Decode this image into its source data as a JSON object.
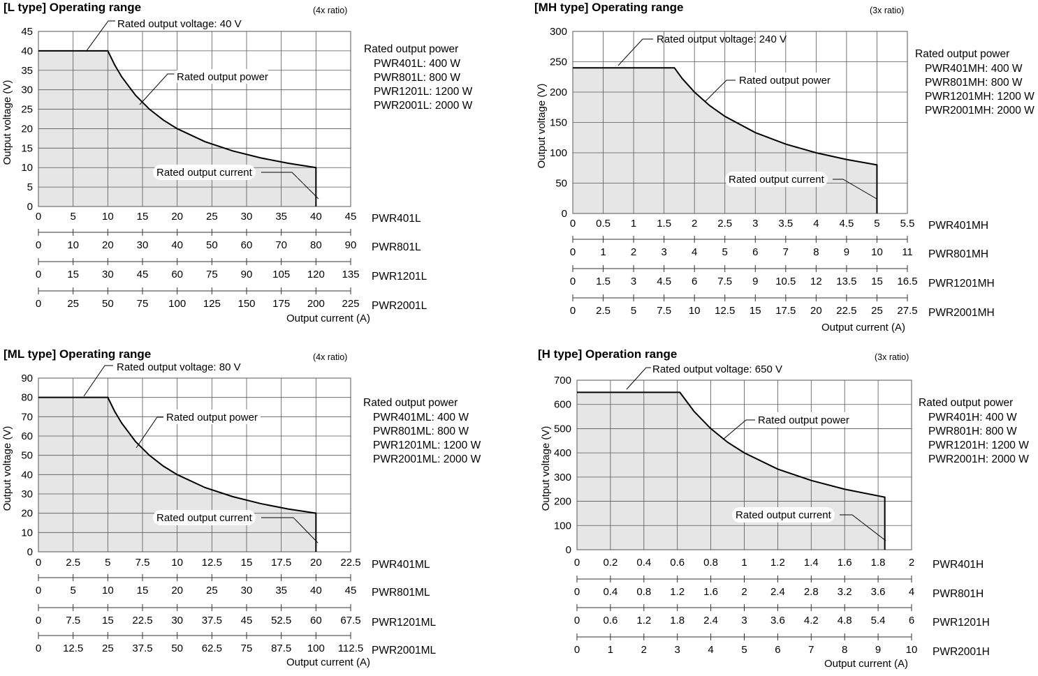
{
  "colors": {
    "fill": "#e6e6e6",
    "line": "#000000",
    "grid": "#555555",
    "tick_line": "#333333"
  },
  "chart_data": [
    {
      "type": "area",
      "title": "[L type] Operating range",
      "ratio_note": "(4x ratio)",
      "ylabel": "Output voltage (V)",
      "xlabel": "Output current (A)",
      "ylim": [
        0,
        45
      ],
      "yticks": [
        "0",
        "5",
        "10",
        "15",
        "20",
        "25",
        "30",
        "35",
        "40",
        "45"
      ],
      "grid_x_divisions": 9,
      "x_axes": [
        {
          "model": "PWR401L",
          "ticks": [
            "0",
            "5",
            "10",
            "15",
            "20",
            "25",
            "30",
            "35",
            "40",
            "45"
          ]
        },
        {
          "model": "PWR801L",
          "ticks": [
            "0",
            "10",
            "20",
            "30",
            "40",
            "50",
            "60",
            "70",
            "80",
            "90"
          ]
        },
        {
          "model": "PWR1201L",
          "ticks": [
            "0",
            "15",
            "30",
            "45",
            "60",
            "75",
            "90",
            "105",
            "120",
            "135"
          ]
        },
        {
          "model": "PWR2001L",
          "ticks": [
            "0",
            "25",
            "50",
            "75",
            "100",
            "125",
            "150",
            "175",
            "200",
            "225"
          ]
        }
      ],
      "xlim": [
        0,
        45
      ],
      "boundary": [
        [
          0,
          40
        ],
        [
          10,
          40
        ],
        [
          11,
          36.36
        ],
        [
          12,
          33.33
        ],
        [
          14,
          28.57
        ],
        [
          16,
          25
        ],
        [
          18,
          22.22
        ],
        [
          20,
          20
        ],
        [
          24,
          16.67
        ],
        [
          28,
          14.29
        ],
        [
          32,
          12.5
        ],
        [
          36,
          11.11
        ],
        [
          40,
          10
        ],
        [
          40,
          0
        ]
      ],
      "annotations": {
        "voltage": "Rated output voltage: 40 V",
        "power": "Rated output power",
        "current": "Rated output current"
      },
      "rated_power": {
        "heading": "Rated output power",
        "items": [
          "PWR401L: 400 W",
          "PWR801L: 800 W",
          "PWR1201L: 1200 W",
          "PWR2001L: 2000 W"
        ]
      }
    },
    {
      "type": "area",
      "title": "[MH type] Operating range",
      "ratio_note": "(3x ratio)",
      "ylabel": "Output voltage (V)",
      "xlabel": "Output current (A)",
      "ylim": [
        0,
        300
      ],
      "yticks": [
        "0",
        "50",
        "100",
        "150",
        "200",
        "250",
        "300"
      ],
      "grid_x_divisions": 11,
      "x_axes": [
        {
          "model": "PWR401MH",
          "ticks": [
            "0",
            "0.5",
            "1",
            "1.5",
            "2",
            "2.5",
            "3",
            "3.5",
            "4",
            "4.5",
            "5",
            "5.5"
          ]
        },
        {
          "model": "PWR801MH",
          "ticks": [
            "0",
            "1",
            "2",
            "3",
            "4",
            "5",
            "6",
            "7",
            "8",
            "9",
            "10",
            "11"
          ]
        },
        {
          "model": "PWR1201MH",
          "ticks": [
            "0",
            "1.5",
            "3",
            "4.5",
            "6",
            "7.5",
            "9",
            "10.5",
            "12",
            "13.5",
            "15",
            "16.5"
          ]
        },
        {
          "model": "PWR2001MH",
          "ticks": [
            "0",
            "2.5",
            "5",
            "7.5",
            "10",
            "12.5",
            "15",
            "17.5",
            "20",
            "22.5",
            "25",
            "27.5"
          ]
        }
      ],
      "xlim": [
        0,
        5.5
      ],
      "boundary": [
        [
          0,
          240
        ],
        [
          1.67,
          240
        ],
        [
          1.8,
          222.2
        ],
        [
          2.0,
          200
        ],
        [
          2.25,
          177.8
        ],
        [
          2.5,
          160
        ],
        [
          3.0,
          133.3
        ],
        [
          3.5,
          114.3
        ],
        [
          4.0,
          100
        ],
        [
          4.5,
          88.9
        ],
        [
          5.0,
          80
        ],
        [
          5.0,
          0
        ]
      ],
      "annotations": {
        "voltage": "Rated output voltage: 240 V",
        "power": "Rated output power",
        "current": "Rated output current"
      },
      "rated_power": {
        "heading": "Rated output power",
        "items": [
          "PWR401MH: 400 W",
          "PWR801MH: 800 W",
          "PWR1201MH: 1200 W",
          "PWR2001MH: 2000 W"
        ]
      }
    },
    {
      "type": "area",
      "title": "[ML type] Operating range",
      "ratio_note": "(4x ratio)",
      "ylabel": "Output voltage (V)",
      "xlabel": "Output current (A)",
      "ylim": [
        0,
        90
      ],
      "yticks": [
        "0",
        "10",
        "20",
        "30",
        "40",
        "50",
        "60",
        "70",
        "80",
        "90"
      ],
      "grid_x_divisions": 9,
      "x_axes": [
        {
          "model": "PWR401ML",
          "ticks": [
            "0",
            "2.5",
            "5",
            "7.5",
            "10",
            "12.5",
            "15",
            "17.5",
            "20",
            "22.5"
          ]
        },
        {
          "model": "PWR801ML",
          "ticks": [
            "0",
            "5",
            "10",
            "15",
            "20",
            "25",
            "30",
            "35",
            "40",
            "45"
          ]
        },
        {
          "model": "PWR1201ML",
          "ticks": [
            "0",
            "7.5",
            "15",
            "22.5",
            "30",
            "37.5",
            "45",
            "52.5",
            "60",
            "67.5"
          ]
        },
        {
          "model": "PWR2001ML",
          "ticks": [
            "0",
            "12.5",
            "25",
            "37.5",
            "50",
            "62.5",
            "75",
            "87.5",
            "100",
            "112.5"
          ]
        }
      ],
      "xlim": [
        0,
        22.5
      ],
      "boundary": [
        [
          0,
          80
        ],
        [
          5,
          80
        ],
        [
          5.5,
          72.7
        ],
        [
          6,
          66.7
        ],
        [
          7,
          57.1
        ],
        [
          8,
          50
        ],
        [
          9,
          44.4
        ],
        [
          10,
          40
        ],
        [
          12,
          33.3
        ],
        [
          14,
          28.6
        ],
        [
          16,
          25
        ],
        [
          18,
          22.2
        ],
        [
          20,
          20
        ],
        [
          20,
          0
        ]
      ],
      "annotations": {
        "voltage": "Rated output voltage: 80 V",
        "power": "Rated output power",
        "current": "Rated output current"
      },
      "rated_power": {
        "heading": "Rated output power",
        "items": [
          "PWR401ML: 400 W",
          "PWR801ML: 800 W",
          "PWR1201ML: 1200 W",
          "PWR2001ML: 2000 W"
        ]
      }
    },
    {
      "type": "area",
      "title": "[H type] Operation range",
      "ratio_note": "(3x ratio)",
      "ylabel": "Output voltage (V)",
      "xlabel": "Output current (A)",
      "ylim": [
        0,
        700
      ],
      "yticks": [
        "0",
        "100",
        "200",
        "300",
        "400",
        "500",
        "600",
        "700"
      ],
      "grid_x_divisions": 10,
      "x_axes": [
        {
          "model": "PWR401H",
          "ticks": [
            "0",
            "0.2",
            "0.4",
            "0.6",
            "0.8",
            "1",
            "1.2",
            "1.4",
            "1.6",
            "1.8",
            "2"
          ]
        },
        {
          "model": "PWR801H",
          "ticks": [
            "0",
            "0.4",
            "0.8",
            "1.2",
            "1.6",
            "2",
            "2.4",
            "2.8",
            "3.2",
            "3.6",
            "4"
          ]
        },
        {
          "model": "PWR1201H",
          "ticks": [
            "0",
            "0.6",
            "1.2",
            "1.8",
            "2.4",
            "3",
            "3.6",
            "4.2",
            "4.8",
            "5.4",
            "6"
          ]
        },
        {
          "model": "PWR2001H",
          "ticks": [
            "0",
            "1",
            "2",
            "3",
            "4",
            "5",
            "6",
            "7",
            "8",
            "9",
            "10"
          ]
        }
      ],
      "xlim": [
        0,
        2
      ],
      "boundary": [
        [
          0,
          650
        ],
        [
          0.615,
          650
        ],
        [
          0.7,
          571
        ],
        [
          0.8,
          500
        ],
        [
          0.9,
          444
        ],
        [
          1.0,
          400
        ],
        [
          1.2,
          333
        ],
        [
          1.4,
          286
        ],
        [
          1.6,
          250
        ],
        [
          1.84,
          217
        ],
        [
          1.84,
          0
        ]
      ],
      "annotations": {
        "voltage": "Rated output voltage: 650 V",
        "power": "Rated output power",
        "current": "Rated output current"
      },
      "rated_power": {
        "heading": "Rated output power",
        "items": [
          "PWR401H: 400 W",
          "PWR801H: 800 W",
          "PWR1201H: 1200 W",
          "PWR2001H: 2000 W"
        ]
      }
    }
  ]
}
